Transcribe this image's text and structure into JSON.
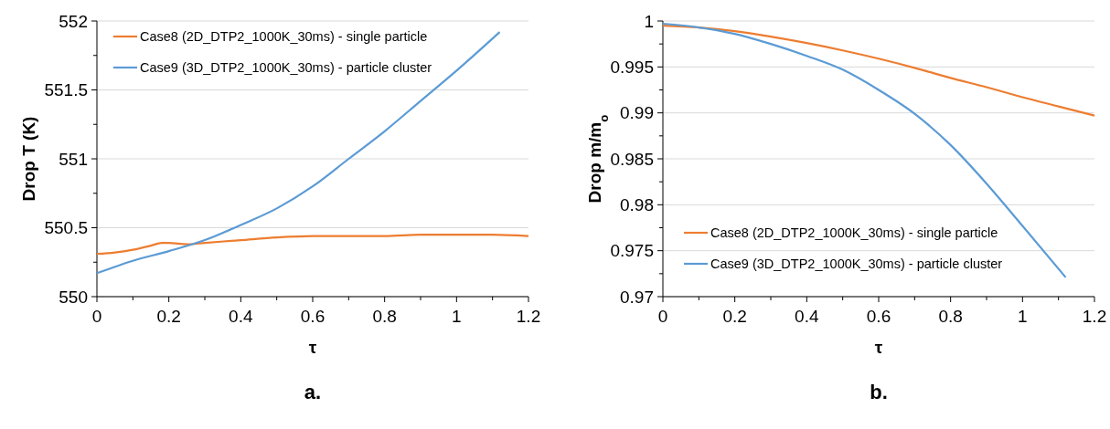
{
  "chart_data": [
    {
      "type": "line",
      "xlabel": "τ",
      "ylabel": "Drop T (K)",
      "annotations": [
        "a."
      ],
      "grid": "y",
      "legend": "top left",
      "xlim": [
        0,
        1.2
      ],
      "ylim": [
        550,
        552
      ],
      "xticks": [
        0,
        {
          "value": 0.1,
          "label": null
        },
        0.2,
        {
          "value": 0.3,
          "label": null
        },
        0.4,
        {
          "value": 0.5,
          "label": null
        },
        0.6,
        {
          "value": 0.7,
          "label": null
        },
        0.8,
        {
          "value": 0.9,
          "label": null
        },
        1,
        {
          "value": 1.1,
          "label": null
        },
        1.2
      ],
      "yticks": [
        550,
        {
          "value": 550.25,
          "label": null
        },
        550.5,
        {
          "value": 550.75,
          "label": null
        },
        551,
        {
          "value": 551.25,
          "label": null
        },
        551.5,
        {
          "value": 551.75,
          "label": null
        },
        552
      ],
      "series": [
        {
          "name": "Case8 (2D_DTP2_1000K_30ms) - single particle",
          "color": "#ed7d31",
          "x": [
            0,
            0.05,
            0.1,
            0.15,
            0.18,
            0.2,
            0.25,
            0.3,
            0.4,
            0.5,
            0.6,
            0.7,
            0.8,
            0.9,
            1.0,
            1.1,
            1.2
          ],
          "values": [
            550.31,
            550.32,
            550.34,
            550.37,
            550.39,
            550.39,
            550.38,
            550.39,
            550.41,
            550.43,
            550.44,
            550.44,
            550.44,
            550.45,
            550.45,
            550.45,
            550.44
          ]
        },
        {
          "name": "Case9 (3D_DTP2_1000K_30ms) - particle cluster",
          "color": "#5b9bd5",
          "x": [
            0,
            0.1,
            0.2,
            0.3,
            0.4,
            0.5,
            0.6,
            0.7,
            0.8,
            0.9,
            1.0,
            1.12
          ],
          "values": [
            550.17,
            550.26,
            550.33,
            550.41,
            550.52,
            550.64,
            550.8,
            551.0,
            551.2,
            551.42,
            551.64,
            551.92
          ]
        }
      ]
    },
    {
      "type": "line",
      "xlabel": "τ",
      "ylabel": "Drop m/m$_{o}$",
      "annotations": [
        "b."
      ],
      "grid": "y",
      "legend": "bottom",
      "xlim": [
        0,
        1.2
      ],
      "ylim": [
        0.97,
        1
      ],
      "xticks": [
        0,
        {
          "value": 0.1,
          "label": null
        },
        0.2,
        {
          "value": 0.3,
          "label": null
        },
        0.4,
        {
          "value": 0.5,
          "label": null
        },
        0.6,
        {
          "value": 0.7,
          "label": null
        },
        0.8,
        {
          "value": 0.9,
          "label": null
        },
        1,
        {
          "value": 1.1,
          "label": null
        },
        1.2
      ],
      "yticks": [
        0.97,
        {
          "value": 0.9725,
          "label": null
        },
        0.975,
        {
          "value": 0.9775,
          "label": null
        },
        0.98,
        {
          "value": 0.9825,
          "label": null
        },
        0.985,
        {
          "value": 0.9875,
          "label": null
        },
        0.99,
        {
          "value": 0.9925,
          "label": null
        },
        0.995,
        {
          "value": 0.9975,
          "label": null
        },
        1
      ],
      "series": [
        {
          "name": "Case8 (2D_DTP2_1000K_30ms) - single particle",
          "color": "#ed7d31",
          "x": [
            0,
            0.1,
            0.2,
            0.3,
            0.4,
            0.5,
            0.6,
            0.7,
            0.8,
            0.9,
            1.0,
            1.1,
            1.2
          ],
          "values": [
            0.9995,
            0.9993,
            0.9989,
            0.9983,
            0.9976,
            0.9968,
            0.9959,
            0.9949,
            0.9938,
            0.9928,
            0.9917,
            0.9907,
            0.9897
          ]
        },
        {
          "name": "Case9 (3D_DTP2_1000K_30ms) - particle cluster",
          "color": "#5b9bd5",
          "x": [
            0,
            0.1,
            0.2,
            0.3,
            0.4,
            0.5,
            0.6,
            0.7,
            0.8,
            0.9,
            1.0,
            1.12
          ],
          "values": [
            0.9997,
            0.9993,
            0.9986,
            0.9975,
            0.9962,
            0.9947,
            0.9925,
            0.9899,
            0.9865,
            0.9823,
            0.9777,
            0.9721
          ]
        }
      ]
    }
  ]
}
